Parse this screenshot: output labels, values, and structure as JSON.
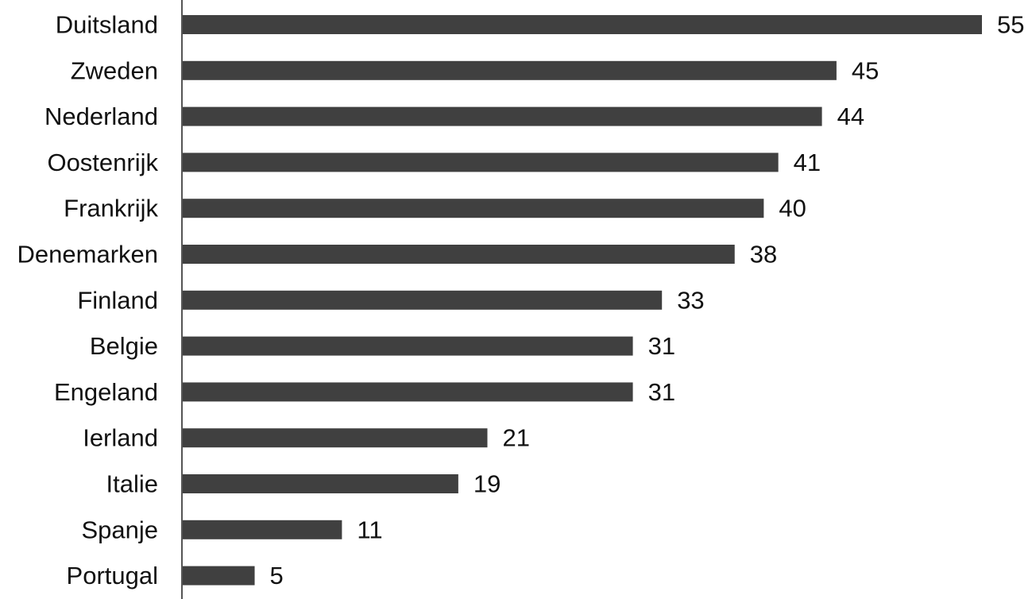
{
  "chart_data": {
    "type": "bar",
    "orientation": "horizontal",
    "title": "",
    "xlabel": "",
    "ylabel": "",
    "categories": [
      "Duitsland",
      "Zweden",
      "Nederland",
      "Oostenrijk",
      "Frankrijk",
      "Denemarken",
      "Finland",
      "Belgie",
      "Engeland",
      "Ierland",
      "Italie",
      "Spanje",
      "Portugal"
    ],
    "values": [
      55,
      45,
      44,
      41,
      40,
      38,
      33,
      31,
      31,
      21,
      19,
      11,
      5
    ],
    "xlim": [
      0,
      55
    ],
    "grid": false,
    "legend": "none",
    "bar_color": "#404040",
    "axis_color": "#555555",
    "text_color": "#111111"
  }
}
